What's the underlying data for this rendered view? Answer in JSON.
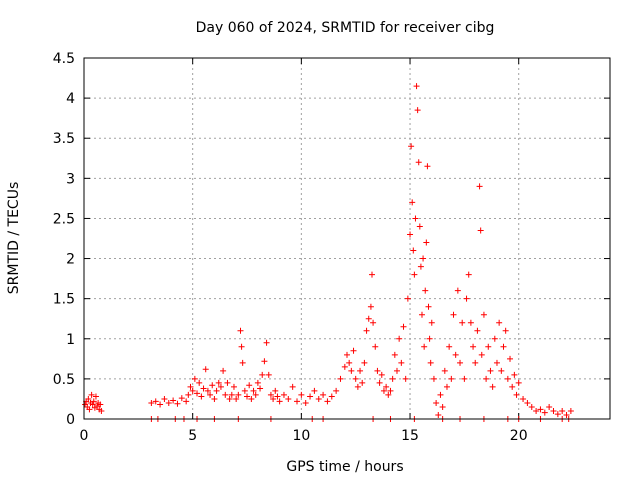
{
  "chart_data": {
    "type": "scatter",
    "title": "Day 060 of 2024, SRMTID for receiver cibg",
    "xlabel": "GPS time / hours",
    "ylabel": "SRMTID / TECUs",
    "xlim": [
      0,
      24.2
    ],
    "ylim": [
      0,
      4.5
    ],
    "xticks": [
      0,
      5,
      10,
      15,
      20
    ],
    "yticks": [
      0,
      0.5,
      1,
      1.5,
      2,
      2.5,
      3,
      3.5,
      4,
      4.5
    ],
    "xtick_labels": [
      "0",
      "5",
      "10",
      "15",
      "20"
    ],
    "ytick_labels": [
      "0",
      "0.5",
      "1",
      "1.5",
      "2",
      "2.5",
      "3",
      "3.5",
      "4",
      "4.5"
    ],
    "grid": true,
    "marker": "+",
    "color": "#ff0000",
    "series": [
      {
        "name": "SRMTID",
        "points": [
          [
            0.05,
            0.18
          ],
          [
            0.1,
            0.22
          ],
          [
            0.15,
            0.15
          ],
          [
            0.2,
            0.25
          ],
          [
            0.25,
            0.12
          ],
          [
            0.3,
            0.2
          ],
          [
            0.35,
            0.3
          ],
          [
            0.4,
            0.18
          ],
          [
            0.45,
            0.22
          ],
          [
            0.5,
            0.14
          ],
          [
            0.55,
            0.28
          ],
          [
            0.6,
            0.16
          ],
          [
            0.65,
            0.2
          ],
          [
            0.7,
            0.12
          ],
          [
            0.75,
            0.18
          ],
          [
            0.8,
            0.1
          ],
          [
            3.1,
            0.2
          ],
          [
            3.3,
            0.22
          ],
          [
            3.5,
            0.18
          ],
          [
            3.7,
            0.25
          ],
          [
            3.9,
            0.2
          ],
          [
            4.1,
            0.23
          ],
          [
            4.3,
            0.19
          ],
          [
            4.5,
            0.26
          ],
          [
            4.7,
            0.22
          ],
          [
            4.8,
            0.3
          ],
          [
            4.9,
            0.4
          ],
          [
            5.0,
            0.35
          ],
          [
            5.1,
            0.5
          ],
          [
            5.2,
            0.32
          ],
          [
            5.3,
            0.45
          ],
          [
            5.4,
            0.28
          ],
          [
            5.5,
            0.38
          ],
          [
            5.6,
            0.62
          ],
          [
            5.7,
            0.35
          ],
          [
            5.8,
            0.3
          ],
          [
            5.9,
            0.42
          ],
          [
            6.0,
            0.25
          ],
          [
            6.1,
            0.35
          ],
          [
            6.2,
            0.45
          ],
          [
            6.3,
            0.4
          ],
          [
            6.4,
            0.6
          ],
          [
            6.5,
            0.3
          ],
          [
            6.6,
            0.45
          ],
          [
            6.7,
            0.25
          ],
          [
            6.8,
            0.3
          ],
          [
            6.9,
            0.4
          ],
          [
            7.0,
            0.25
          ],
          [
            7.1,
            0.3
          ],
          [
            7.2,
            1.1
          ],
          [
            7.25,
            0.9
          ],
          [
            7.3,
            0.7
          ],
          [
            7.4,
            0.35
          ],
          [
            7.5,
            0.28
          ],
          [
            7.6,
            0.42
          ],
          [
            7.7,
            0.25
          ],
          [
            7.8,
            0.35
          ],
          [
            7.9,
            0.3
          ],
          [
            8.0,
            0.45
          ],
          [
            8.1,
            0.38
          ],
          [
            8.2,
            0.55
          ],
          [
            8.3,
            0.72
          ],
          [
            8.4,
            0.95
          ],
          [
            8.5,
            0.55
          ],
          [
            8.6,
            0.3
          ],
          [
            8.7,
            0.25
          ],
          [
            8.8,
            0.35
          ],
          [
            8.9,
            0.28
          ],
          [
            9.0,
            0.22
          ],
          [
            9.2,
            0.3
          ],
          [
            9.4,
            0.25
          ],
          [
            9.6,
            0.4
          ],
          [
            9.8,
            0.22
          ],
          [
            10.0,
            0.3
          ],
          [
            10.2,
            0.2
          ],
          [
            10.4,
            0.28
          ],
          [
            10.6,
            0.35
          ],
          [
            10.8,
            0.25
          ],
          [
            11.0,
            0.3
          ],
          [
            11.2,
            0.22
          ],
          [
            11.4,
            0.28
          ],
          [
            11.6,
            0.35
          ],
          [
            11.8,
            0.5
          ],
          [
            12.0,
            0.65
          ],
          [
            12.1,
            0.8
          ],
          [
            12.2,
            0.7
          ],
          [
            12.3,
            0.6
          ],
          [
            12.4,
            0.85
          ],
          [
            12.5,
            0.5
          ],
          [
            12.6,
            0.4
          ],
          [
            12.7,
            0.6
          ],
          [
            12.8,
            0.45
          ],
          [
            12.9,
            0.7
          ],
          [
            13.0,
            1.1
          ],
          [
            13.1,
            1.25
          ],
          [
            13.2,
            1.4
          ],
          [
            13.25,
            1.8
          ],
          [
            13.3,
            1.2
          ],
          [
            13.4,
            0.9
          ],
          [
            13.5,
            0.6
          ],
          [
            13.6,
            0.45
          ],
          [
            13.7,
            0.55
          ],
          [
            13.8,
            0.35
          ],
          [
            13.9,
            0.4
          ],
          [
            14.0,
            0.3
          ],
          [
            14.1,
            0.35
          ],
          [
            14.2,
            0.5
          ],
          [
            14.3,
            0.8
          ],
          [
            14.4,
            0.6
          ],
          [
            14.5,
            1.0
          ],
          [
            14.6,
            0.7
          ],
          [
            14.7,
            1.15
          ],
          [
            14.8,
            0.5
          ],
          [
            14.9,
            1.5
          ],
          [
            15.0,
            2.3
          ],
          [
            15.05,
            3.4
          ],
          [
            15.1,
            2.7
          ],
          [
            15.15,
            2.1
          ],
          [
            15.2,
            1.8
          ],
          [
            15.25,
            2.5
          ],
          [
            15.3,
            4.15
          ],
          [
            15.35,
            3.85
          ],
          [
            15.4,
            3.2
          ],
          [
            15.45,
            2.4
          ],
          [
            15.5,
            1.9
          ],
          [
            15.55,
            1.3
          ],
          [
            15.6,
            2.0
          ],
          [
            15.65,
            0.9
          ],
          [
            15.7,
            1.6
          ],
          [
            15.75,
            2.2
          ],
          [
            15.8,
            3.15
          ],
          [
            15.85,
            1.4
          ],
          [
            15.9,
            1.0
          ],
          [
            15.95,
            0.7
          ],
          [
            16.0,
            1.2
          ],
          [
            16.1,
            0.5
          ],
          [
            16.2,
            0.2
          ],
          [
            16.3,
            0.05
          ],
          [
            16.4,
            0.3
          ],
          [
            16.5,
            0.15
          ],
          [
            16.6,
            0.6
          ],
          [
            16.7,
            0.4
          ],
          [
            16.8,
            0.9
          ],
          [
            16.9,
            0.5
          ],
          [
            17.0,
            1.3
          ],
          [
            17.1,
            0.8
          ],
          [
            17.2,
            1.6
          ],
          [
            17.3,
            0.7
          ],
          [
            17.4,
            1.2
          ],
          [
            17.5,
            0.5
          ],
          [
            17.6,
            1.5
          ],
          [
            17.7,
            1.8
          ],
          [
            17.8,
            1.2
          ],
          [
            17.9,
            0.9
          ],
          [
            18.0,
            0.7
          ],
          [
            18.1,
            1.1
          ],
          [
            18.2,
            2.9
          ],
          [
            18.25,
            2.35
          ],
          [
            18.3,
            0.8
          ],
          [
            18.4,
            1.3
          ],
          [
            18.5,
            0.5
          ],
          [
            18.6,
            0.9
          ],
          [
            18.7,
            0.6
          ],
          [
            18.8,
            0.4
          ],
          [
            18.9,
            1.0
          ],
          [
            19.0,
            0.7
          ],
          [
            19.1,
            1.2
          ],
          [
            19.2,
            0.6
          ],
          [
            19.3,
            0.9
          ],
          [
            19.4,
            1.1
          ],
          [
            19.5,
            0.5
          ],
          [
            19.6,
            0.75
          ],
          [
            19.7,
            0.4
          ],
          [
            19.8,
            0.55
          ],
          [
            19.9,
            0.3
          ],
          [
            20.0,
            0.45
          ],
          [
            20.2,
            0.25
          ],
          [
            20.4,
            0.2
          ],
          [
            20.6,
            0.15
          ],
          [
            20.8,
            0.1
          ],
          [
            21.0,
            0.12
          ],
          [
            21.2,
            0.08
          ],
          [
            21.4,
            0.15
          ],
          [
            21.6,
            0.1
          ],
          [
            21.8,
            0.06
          ],
          [
            22.0,
            0.1
          ],
          [
            22.2,
            0.05
          ],
          [
            22.4,
            0.1
          ],
          [
            3.1,
            0.0
          ],
          [
            3.4,
            0.0
          ],
          [
            4.2,
            0.0
          ],
          [
            4.6,
            0.0
          ],
          [
            5.2,
            0.0
          ],
          [
            6.0,
            0.0
          ],
          [
            7.1,
            0.0
          ],
          [
            8.6,
            0.0
          ],
          [
            10.5,
            0.0
          ],
          [
            11.0,
            0.0
          ],
          [
            13.3,
            0.0
          ],
          [
            14.1,
            0.0
          ],
          [
            15.2,
            0.0
          ],
          [
            16.5,
            0.0
          ],
          [
            17.3,
            0.0
          ],
          [
            18.4,
            0.0
          ],
          [
            19.5,
            0.0
          ],
          [
            20.0,
            0.0
          ],
          [
            21.0,
            0.0
          ],
          [
            22.0,
            0.0
          ],
          [
            22.3,
            0.0
          ]
        ]
      }
    ]
  }
}
